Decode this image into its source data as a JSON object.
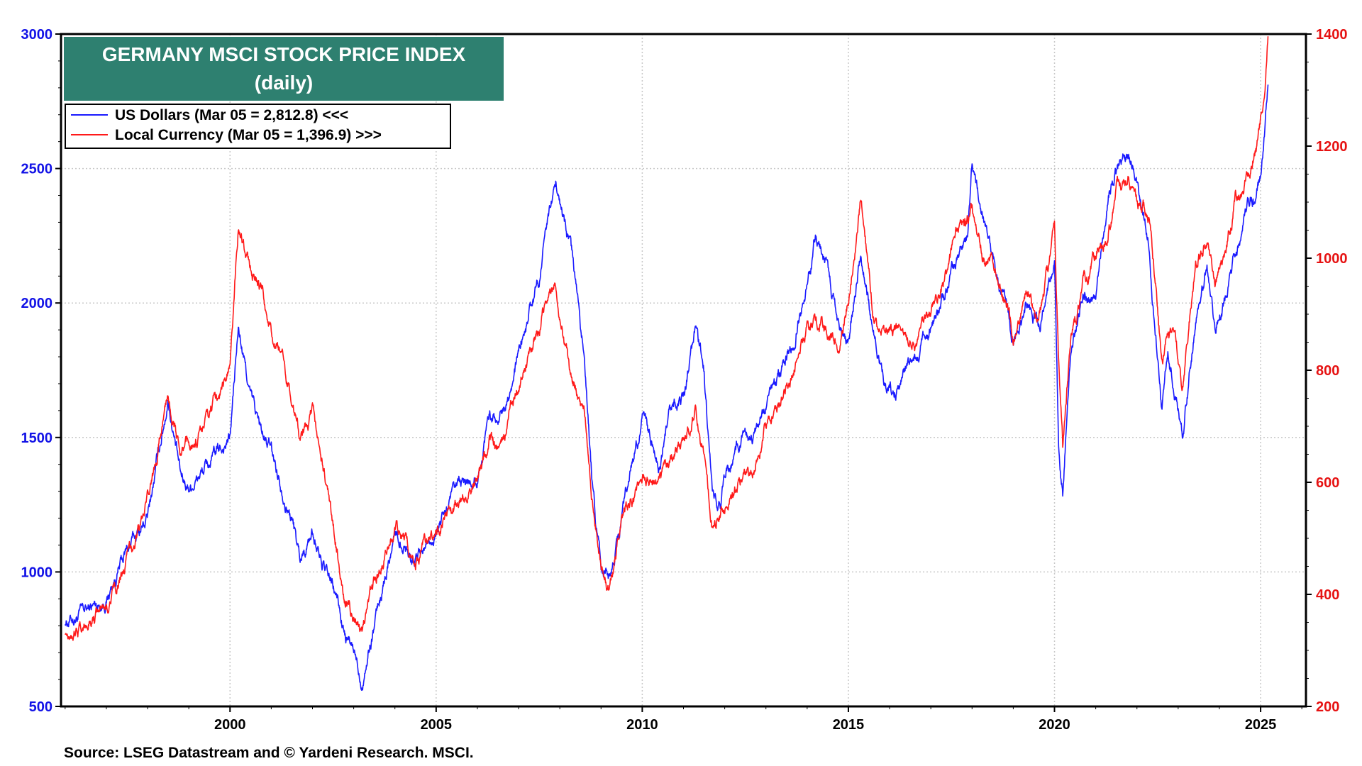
{
  "chart_data": {
    "type": "line",
    "title": "GERMANY MSCI STOCK PRICE INDEX",
    "subtitle": "(daily)",
    "source": "Source: LSEG Datastream and © Yardeni Research. MSCI.",
    "xlim": [
      1995.9,
      2026.1
    ],
    "x_ticks": [
      {
        "value": 2000,
        "label": "2000"
      },
      {
        "value": 2005,
        "label": "2005"
      },
      {
        "value": 2010,
        "label": "2010"
      },
      {
        "value": 2015,
        "label": "2015"
      },
      {
        "value": 2020,
        "label": "2020"
      },
      {
        "value": 2025,
        "label": "2025"
      }
    ],
    "left_axis": {
      "ylim": [
        500,
        3000
      ],
      "ticks": [
        {
          "value": 3000,
          "label": "3000"
        },
        {
          "value": 2500,
          "label": "2500"
        },
        {
          "value": 2000,
          "label": "2000"
        },
        {
          "value": 1500,
          "label": "1500"
        },
        {
          "value": 1000,
          "label": "1000"
        },
        {
          "value": 500,
          "label": "500"
        }
      ]
    },
    "right_axis": {
      "ylim": [
        200,
        1400
      ],
      "ticks": [
        {
          "value": 1400,
          "label": "1400"
        },
        {
          "value": 1200,
          "label": "1200"
        },
        {
          "value": 1000,
          "label": "1000"
        },
        {
          "value": 800,
          "label": "800"
        },
        {
          "value": 600,
          "label": "600"
        },
        {
          "value": 400,
          "label": "400"
        },
        {
          "value": 200,
          "label": "200"
        }
      ]
    },
    "grid": true,
    "legend_position": "top-left",
    "series": [
      {
        "name": "US Dollars (Mar 05 = 2,812.8) <<<",
        "axis": "left",
        "color": "#1a1aff",
        "x": [
          1996.0,
          1996.5,
          1997.0,
          1997.5,
          1998.0,
          1998.5,
          1998.8,
          1999.0,
          1999.5,
          2000.0,
          2000.2,
          2000.5,
          2000.8,
          2001.0,
          2001.5,
          2001.7,
          2002.0,
          2002.3,
          2002.6,
          2002.8,
          2003.0,
          2003.2,
          2003.5,
          2004.0,
          2004.5,
          2005.0,
          2005.5,
          2006.0,
          2006.3,
          2006.5,
          2007.0,
          2007.5,
          2007.9,
          2008.1,
          2008.3,
          2008.6,
          2008.8,
          2009.0,
          2009.2,
          2009.5,
          2009.8,
          2010.0,
          2010.4,
          2010.7,
          2011.0,
          2011.3,
          2011.5,
          2011.7,
          2011.9,
          2012.0,
          2012.4,
          2012.7,
          2013.0,
          2013.4,
          2013.7,
          2014.0,
          2014.2,
          2014.5,
          2014.8,
          2015.0,
          2015.3,
          2015.6,
          2015.9,
          2016.1,
          2016.4,
          2016.7,
          2017.0,
          2017.3,
          2017.6,
          2017.9,
          2018.0,
          2018.3,
          2018.6,
          2018.9,
          2019.0,
          2019.3,
          2019.6,
          2019.9,
          2020.0,
          2020.1,
          2020.2,
          2020.4,
          2020.7,
          2021.0,
          2021.3,
          2021.5,
          2021.8,
          2022.0,
          2022.3,
          2022.6,
          2022.75,
          2022.9,
          2023.1,
          2023.4,
          2023.7,
          2023.9,
          2024.1,
          2024.4,
          2024.7,
          2024.9,
          2025.0,
          2025.1,
          2025.18
        ],
        "y": [
          820,
          850,
          900,
          1080,
          1200,
          1650,
          1350,
          1320,
          1400,
          1500,
          1900,
          1650,
          1500,
          1450,
          1200,
          1050,
          1150,
          1000,
          900,
          750,
          700,
          600,
          800,
          1150,
          1050,
          1150,
          1300,
          1350,
          1600,
          1550,
          1800,
          2100,
          2450,
          2300,
          2150,
          1800,
          1300,
          1000,
          1000,
          1200,
          1450,
          1550,
          1400,
          1600,
          1650,
          1900,
          1750,
          1300,
          1250,
          1350,
          1500,
          1500,
          1600,
          1750,
          1900,
          2050,
          2250,
          2100,
          1900,
          1850,
          2200,
          1900,
          1700,
          1650,
          1750,
          1800,
          1900,
          2000,
          2150,
          2250,
          2500,
          2300,
          2100,
          1950,
          1850,
          2000,
          1900,
          2050,
          2150,
          1450,
          1300,
          1850,
          2000,
          2050,
          2400,
          2500,
          2550,
          2450,
          2200,
          1600,
          1800,
          1700,
          1500,
          1900,
          2150,
          1900,
          2000,
          2200,
          2350,
          2400,
          2450,
          2650,
          2812
        ]
      },
      {
        "name": "Local Currency (Mar 05 = 1,396.9) >>>",
        "axis": "right",
        "color": "#ff1a1a",
        "x": [
          1996.0,
          1996.5,
          1997.0,
          1997.5,
          1998.0,
          1998.5,
          1998.8,
          1999.0,
          1999.5,
          2000.0,
          2000.2,
          2000.5,
          2000.8,
          2001.0,
          2001.5,
          2001.7,
          2002.0,
          2002.3,
          2002.6,
          2002.8,
          2003.0,
          2003.2,
          2003.5,
          2004.0,
          2004.5,
          2005.0,
          2005.5,
          2006.0,
          2006.3,
          2006.5,
          2007.0,
          2007.5,
          2007.9,
          2008.1,
          2008.3,
          2008.6,
          2008.8,
          2009.0,
          2009.2,
          2009.5,
          2009.8,
          2010.0,
          2010.4,
          2010.7,
          2011.0,
          2011.3,
          2011.5,
          2011.7,
          2011.9,
          2012.0,
          2012.4,
          2012.7,
          2013.0,
          2013.4,
          2013.7,
          2014.0,
          2014.2,
          2014.5,
          2014.8,
          2015.0,
          2015.3,
          2015.6,
          2015.9,
          2016.1,
          2016.4,
          2016.7,
          2017.0,
          2017.3,
          2017.6,
          2017.9,
          2018.0,
          2018.3,
          2018.6,
          2018.9,
          2019.0,
          2019.3,
          2019.6,
          2019.9,
          2020.0,
          2020.1,
          2020.2,
          2020.4,
          2020.7,
          2021.0,
          2021.3,
          2021.5,
          2021.8,
          2022.0,
          2022.3,
          2022.6,
          2022.75,
          2022.9,
          2023.1,
          2023.4,
          2023.7,
          2023.9,
          2024.1,
          2024.4,
          2024.7,
          2024.9,
          2025.0,
          2025.1,
          2025.18
        ],
        "y": [
          335,
          345,
          380,
          460,
          560,
          760,
          640,
          660,
          720,
          800,
          1060,
          980,
          930,
          860,
          760,
          680,
          720,
          600,
          480,
          390,
          360,
          320,
          420,
          520,
          470,
          520,
          560,
          600,
          680,
          660,
          770,
          880,
          960,
          860,
          780,
          720,
          560,
          460,
          420,
          540,
          580,
          620,
          600,
          640,
          680,
          720,
          660,
          520,
          540,
          560,
          600,
          620,
          700,
          760,
          800,
          880,
          890,
          870,
          850,
          920,
          1100,
          900,
          860,
          860,
          840,
          870,
          900,
          950,
          1040,
          1070,
          1100,
          1000,
          980,
          900,
          850,
          940,
          900,
          1000,
          1050,
          820,
          660,
          860,
          950,
          1000,
          1050,
          1120,
          1150,
          1100,
          1080,
          820,
          860,
          880,
          760,
          980,
          1040,
          960,
          1000,
          1100,
          1150,
          1200,
          1260,
          1300,
          1396
        ]
      }
    ]
  },
  "legend": {
    "items": [
      {
        "label": "US Dollars (Mar 05 = 2,812.8) <<<",
        "color": "#1a1aff"
      },
      {
        "label": "Local Currency (Mar 05 = 1,396.9) >>>",
        "color": "#ff1a1a"
      }
    ]
  },
  "colors": {
    "title_bg": "#2e8070",
    "left_axis": "#1212e6",
    "right_axis": "#e61212",
    "grid": "#c8c8c8"
  }
}
